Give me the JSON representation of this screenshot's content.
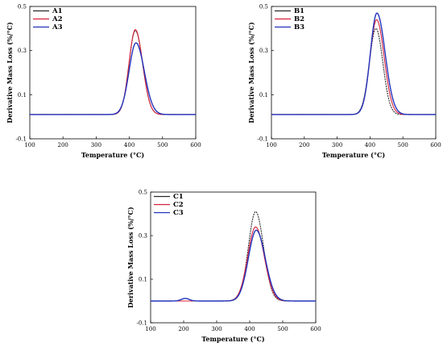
{
  "colors": {
    "series1": "#2a2a2a",
    "series2": "#d8213a",
    "series3": "#2233bb"
  },
  "chart_data": [
    {
      "id": "A",
      "type": "line",
      "xlabel": "Temperature (°C)",
      "ylabel": "Derivative Mass Loss (%/°C)",
      "xlim": [
        100,
        600
      ],
      "ylim": [
        -0.1,
        0.5
      ],
      "xticks": [
        100,
        200,
        300,
        400,
        500,
        600
      ],
      "yticks": [
        -0.1,
        0.1,
        0.3,
        0.5
      ],
      "ytick_labels": [
        "-0.1",
        "0.1",
        "0.3",
        "0.5"
      ],
      "grid": false,
      "legend": "top-left",
      "series": [
        {
          "name": "A1",
          "peak_x": 418,
          "peak_y": 0.39,
          "sigma_left": 19,
          "sigma_right": 22,
          "baseline_y": 0.01,
          "bump_x": null,
          "bump_y": 0
        },
        {
          "name": "A2",
          "peak_x": 418,
          "peak_y": 0.395,
          "sigma_left": 19,
          "sigma_right": 22,
          "baseline_y": 0.01,
          "bump_x": null,
          "bump_y": 0
        },
        {
          "name": "A3",
          "peak_x": 420,
          "peak_y": 0.335,
          "sigma_left": 21,
          "sigma_right": 25,
          "baseline_y": 0.01,
          "bump_x": null,
          "bump_y": 0
        }
      ]
    },
    {
      "id": "B",
      "type": "line",
      "xlabel": "Temperature (°C)",
      "ylabel": "Derivative Mass Loss (%/°C)",
      "xlim": [
        100,
        600
      ],
      "ylim": [
        -0.1,
        0.5
      ],
      "xticks": [
        100,
        200,
        300,
        400,
        500,
        600
      ],
      "yticks": [
        -0.1,
        0.1,
        0.3,
        0.5
      ],
      "ytick_labels": [
        "-0.1",
        "0.1",
        "0.3",
        "0.5"
      ],
      "grid": false,
      "legend": "top-left",
      "series": [
        {
          "name": "B1",
          "peak_x": 418,
          "peak_y": 0.4,
          "sigma_left": 20,
          "sigma_right": 21,
          "baseline_y": 0.01,
          "bump_x": null,
          "bump_y": 0
        },
        {
          "name": "B2",
          "peak_x": 420,
          "peak_y": 0.44,
          "sigma_left": 20,
          "sigma_right": 23,
          "baseline_y": 0.01,
          "bump_x": null,
          "bump_y": 0
        },
        {
          "name": "B3",
          "peak_x": 421,
          "peak_y": 0.47,
          "sigma_left": 20,
          "sigma_right": 25,
          "baseline_y": 0.01,
          "bump_x": null,
          "bump_y": 0
        }
      ]
    },
    {
      "id": "C",
      "type": "line",
      "xlabel": "Temperature (°C)",
      "ylabel": "Derivative Mass Loss (%/°C)",
      "xlim": [
        100,
        600
      ],
      "ylim": [
        -0.1,
        0.5
      ],
      "xticks": [
        100,
        200,
        300,
        400,
        500,
        600
      ],
      "yticks": [
        -0.1,
        0.1,
        0.3,
        0.5
      ],
      "ytick_labels": [
        "-0.1",
        "0.1",
        "0.3",
        "0.5"
      ],
      "grid": false,
      "legend": "top-left",
      "series": [
        {
          "name": "C1",
          "peak_x": 418,
          "peak_y": 0.41,
          "sigma_left": 22,
          "sigma_right": 24,
          "baseline_y": 0.0,
          "bump_x": null,
          "bump_y": 0
        },
        {
          "name": "C2",
          "peak_x": 418,
          "peak_y": 0.34,
          "sigma_left": 24,
          "sigma_right": 26,
          "baseline_y": 0.0,
          "bump_x": null,
          "bump_y": 0
        },
        {
          "name": "C3",
          "peak_x": 420,
          "peak_y": 0.325,
          "sigma_left": 24,
          "sigma_right": 27,
          "baseline_y": 0.0,
          "bump_x": 205,
          "bump_y": 0.012
        }
      ]
    }
  ]
}
